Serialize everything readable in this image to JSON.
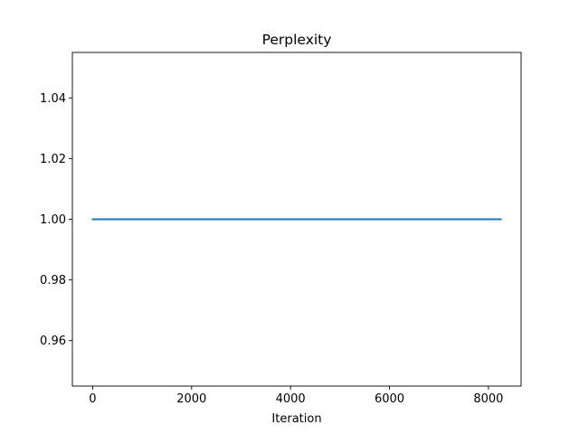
{
  "chart_data": {
    "type": "line",
    "title": "Perplexity",
    "xlabel": "Iteration",
    "ylabel": "",
    "xlim": [
      -410,
      8660
    ],
    "ylim": [
      0.945,
      1.055
    ],
    "xticks": [
      0,
      2000,
      4000,
      6000,
      8000
    ],
    "xtick_labels": [
      "0",
      "2000",
      "4000",
      "6000",
      "8000"
    ],
    "yticks": [
      0.96,
      0.98,
      1.0,
      1.02,
      1.04
    ],
    "ytick_labels": [
      "0.96",
      "0.98",
      "1.00",
      "1.02",
      "1.04"
    ],
    "grid": false,
    "legend": "none",
    "series": [
      {
        "color": "#1f77b4",
        "x": [
          0,
          8250
        ],
        "y": [
          1.0,
          1.0
        ]
      }
    ]
  }
}
